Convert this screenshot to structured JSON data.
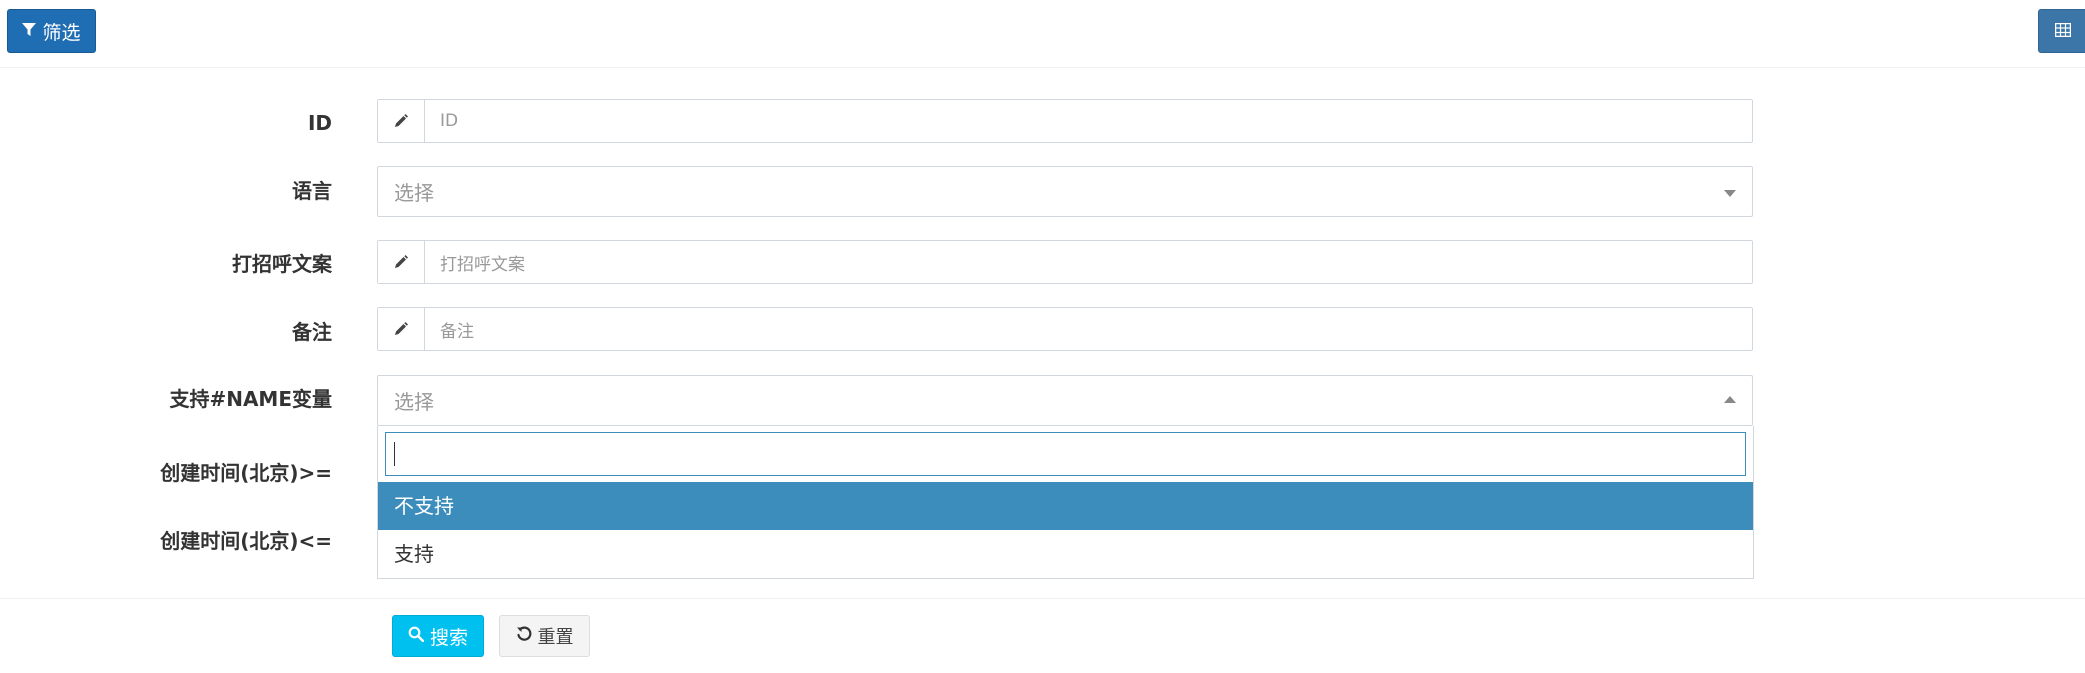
{
  "toolbar": {
    "filter_label": "筛选",
    "filter_icon": "filter-icon",
    "columns_icon": "table-columns-icon"
  },
  "form": {
    "fields": [
      {
        "label": "ID",
        "type": "text",
        "placeholder": "ID"
      },
      {
        "label": "语言",
        "type": "select",
        "value": "选择"
      },
      {
        "label": "打招呼文案",
        "type": "text",
        "placeholder": "打招呼文案"
      },
      {
        "label": "备注",
        "type": "text",
        "placeholder": "备注"
      },
      {
        "label": "支持#NAME变量",
        "type": "select",
        "value": "选择",
        "open": true
      },
      {
        "label": "创建时间(北京)>="
      },
      {
        "label": "创建时间(北京)<="
      }
    ],
    "dropdown": {
      "search_value": "",
      "options": [
        "不支持",
        "支持"
      ],
      "highlighted": "不支持"
    }
  },
  "actions": {
    "search_label": "搜索",
    "reset_label": "重置"
  },
  "colors": {
    "primary": "#1f6db3",
    "info": "#00c0ef",
    "highlight": "#3c8dbc"
  }
}
